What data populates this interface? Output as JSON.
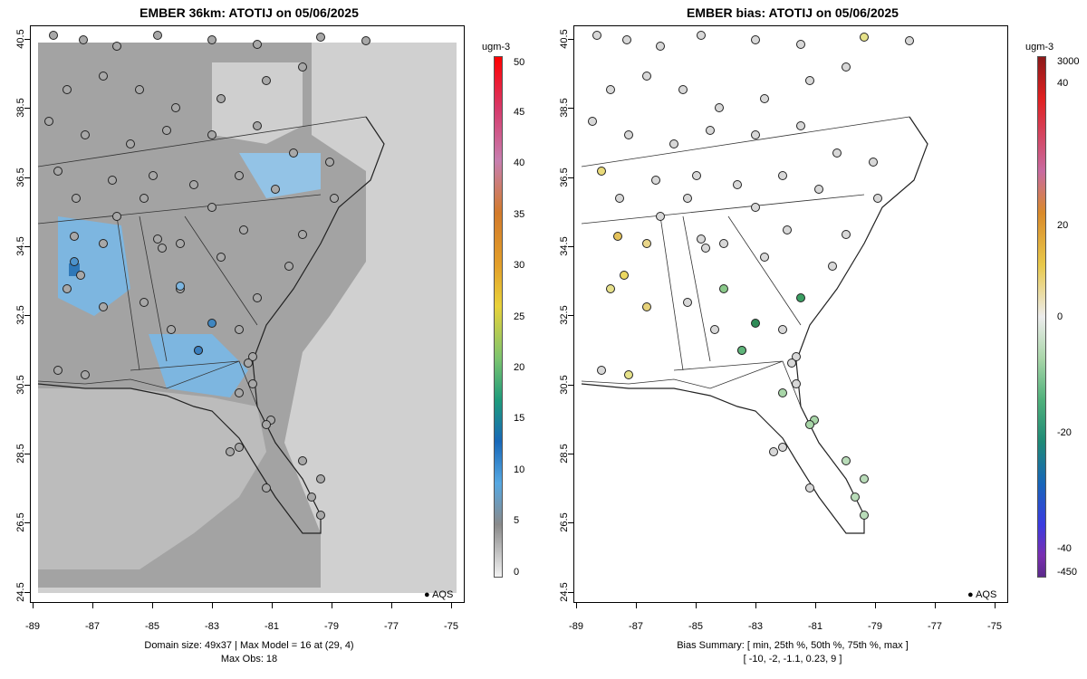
{
  "left": {
    "title": "EMBER 36km: ATOTIJ on 05/06/2025",
    "unit": "ugm-3",
    "colorbar_labels": [
      "50",
      "45",
      "40",
      "35",
      "30",
      "25",
      "20",
      "15",
      "10",
      "5",
      "0"
    ],
    "footer_line1": "Domain size: 49x37 | Max Model = 16 at (29, 4)",
    "footer_line2": "Max Obs: 18",
    "legend": "AQS"
  },
  "right": {
    "title": "EMBER bias: ATOTIJ on 05/06/2025",
    "unit": "ugm-3",
    "colorbar_labels": [
      "3000",
      "40",
      "20",
      "0",
      "-20",
      "-40",
      "-450"
    ],
    "footer_line1": "Bias Summary: [ min, 25th %, 50th %, 75th %, max ]",
    "footer_line2": "[ -10,   -2,   -1.1,   0.23,   9 ]",
    "legend": "AQS"
  },
  "axes": {
    "x_ticks": [
      "-89",
      "-87",
      "-85",
      "-83",
      "-81",
      "-79",
      "-77",
      "-75"
    ],
    "y_ticks": [
      "40.5",
      "38.5",
      "36.5",
      "34.5",
      "32.5",
      "30.5",
      "28.5",
      "26.5",
      "24.5"
    ]
  },
  "colors": {
    "grid_gray": "#9a9a9a",
    "light_gray": "#cfcfcf",
    "blue_high": "#5aa9e6",
    "ocean": "#d6d6d6"
  }
}
